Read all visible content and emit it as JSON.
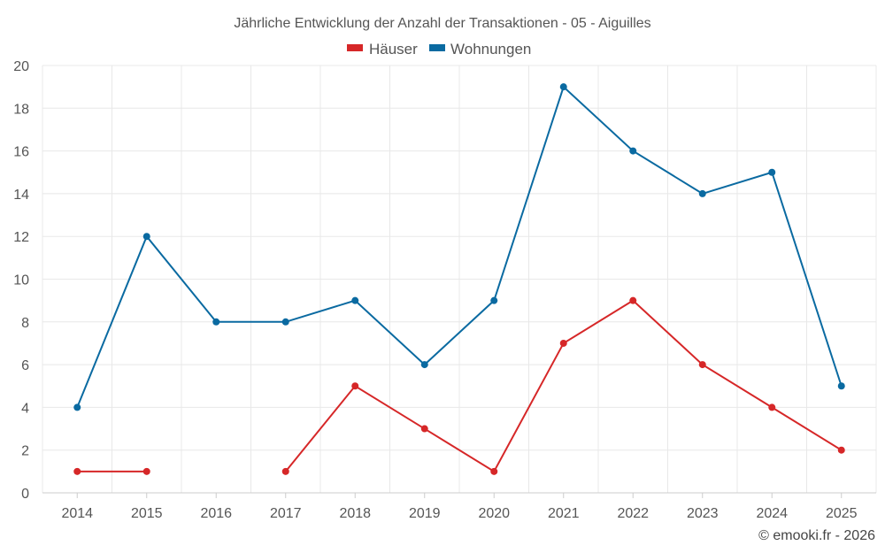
{
  "chart_data": {
    "type": "line",
    "title": "Jährliche Entwicklung der Anzahl der Transaktionen - 05 - Aiguilles",
    "categories": [
      "2014",
      "2015",
      "2016",
      "2017",
      "2018",
      "2019",
      "2020",
      "2021",
      "2022",
      "2023",
      "2024",
      "2025"
    ],
    "series": [
      {
        "name": "Häuser",
        "color": "#d62728",
        "values": [
          1,
          1,
          null,
          1,
          5,
          3,
          1,
          7,
          9,
          6,
          4,
          2
        ]
      },
      {
        "name": "Wohnungen",
        "color": "#0a6aa1",
        "values": [
          4,
          12,
          8,
          8,
          9,
          6,
          9,
          19,
          16,
          14,
          15,
          5
        ]
      }
    ],
    "ylim": [
      0,
      20
    ],
    "yticks": [
      0,
      2,
      4,
      6,
      8,
      10,
      12,
      14,
      16,
      18,
      20
    ],
    "grid": true,
    "legend": "top-center"
  },
  "credit": "© emooki.fr - 2026"
}
